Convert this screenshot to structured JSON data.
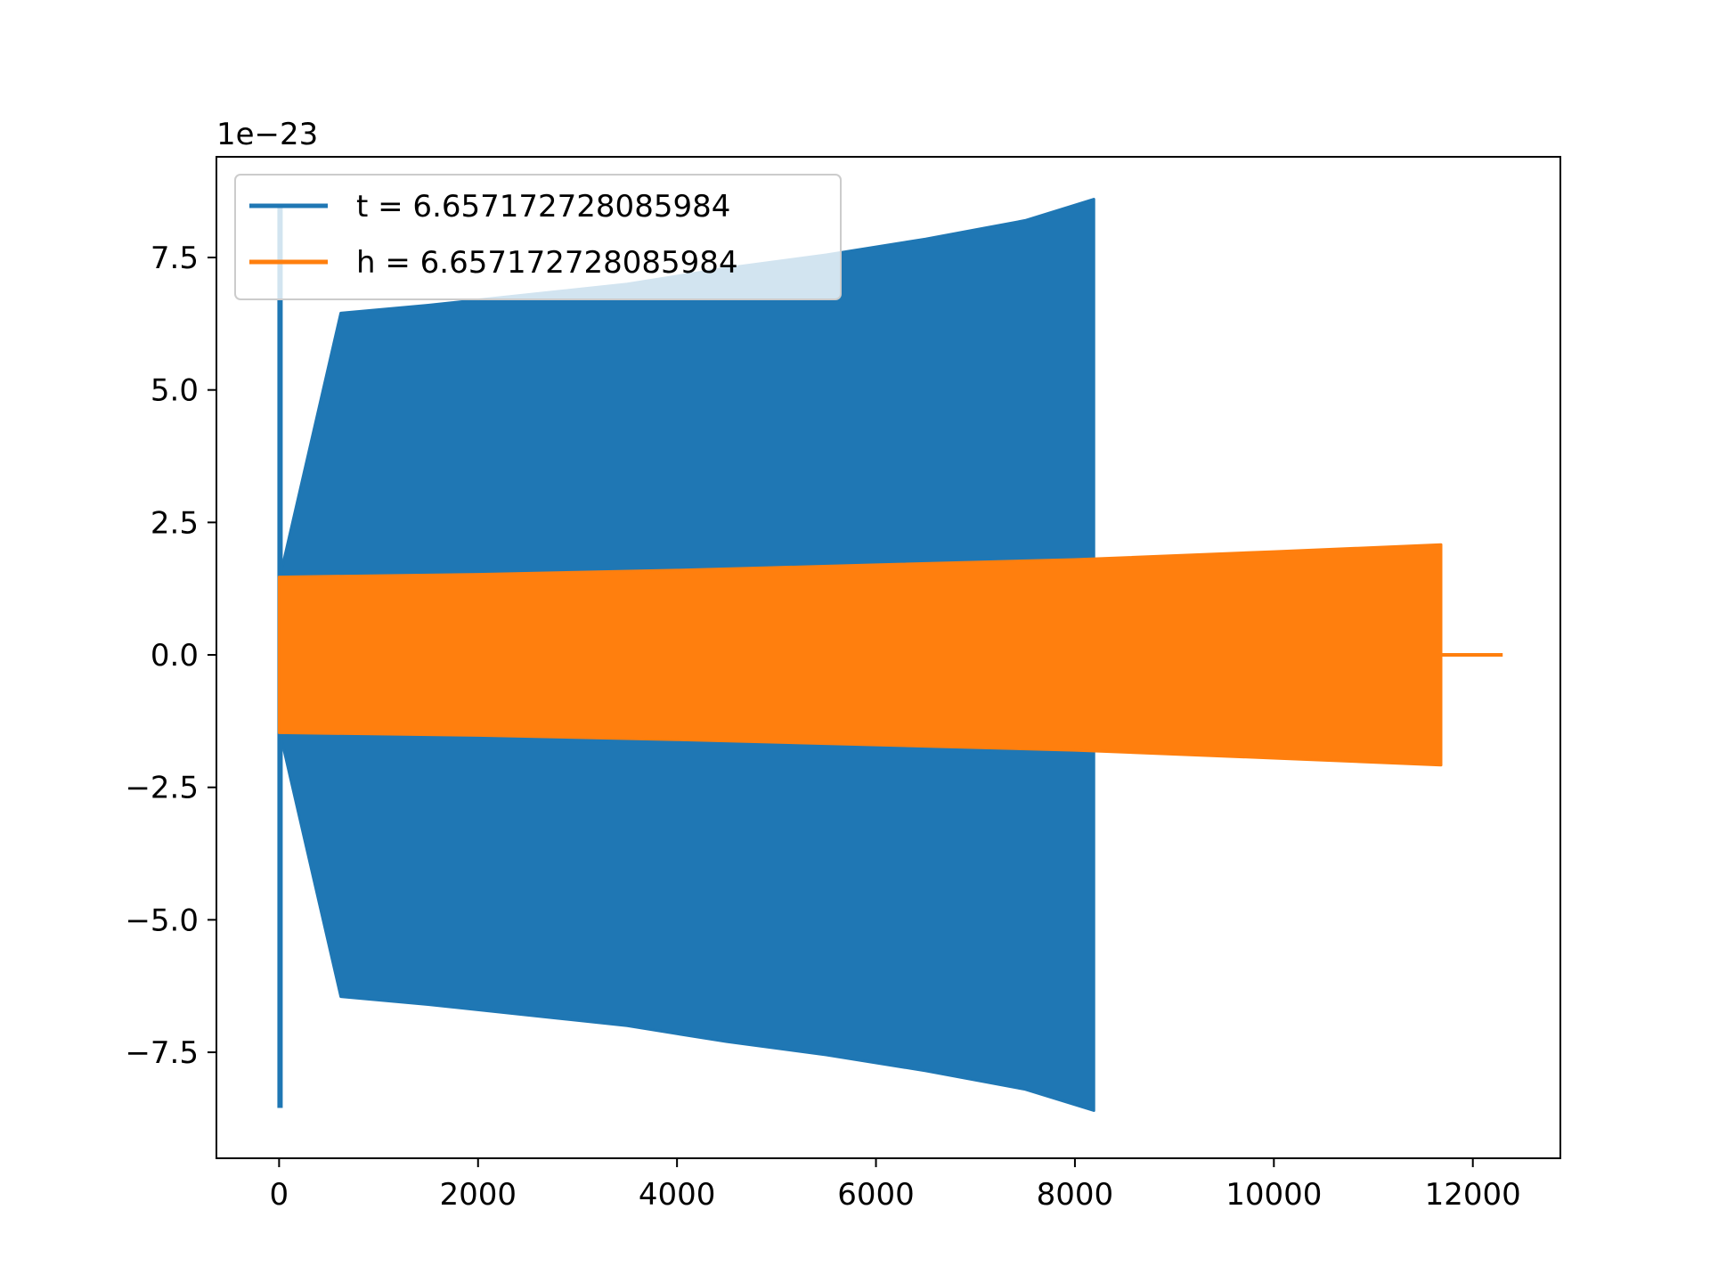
{
  "chart_data": {
    "type": "line",
    "title": "",
    "xlabel": "",
    "ylabel": "",
    "y_offset_text": "1e−23",
    "xlim": [
      -630,
      12880
    ],
    "ylim": [
      -9.5,
      9.4
    ],
    "x_ticks": [
      0,
      2000,
      4000,
      6000,
      8000,
      10000,
      12000
    ],
    "x_tick_labels": [
      "0",
      "2000",
      "4000",
      "6000",
      "8000",
      "10000",
      "12000"
    ],
    "y_ticks": [
      -7.5,
      -5.0,
      -2.5,
      0.0,
      2.5,
      5.0,
      7.5
    ],
    "y_tick_labels": [
      "−7.5",
      "−5.0",
      "−2.5",
      "0.0",
      "2.5",
      "5.0",
      "7.5"
    ],
    "grid": false,
    "legend_position": "upper-left",
    "series": [
      {
        "name": "t = 6.657172728085984",
        "color": "#1f77b4",
        "envelope": {
          "x": [
            0,
            620,
            1500,
            2500,
            3500,
            4500,
            5500,
            6500,
            7500,
            8190
          ],
          "upper": [
            1.4,
            6.45,
            6.6,
            6.8,
            7.0,
            7.3,
            7.55,
            7.85,
            8.2,
            8.6
          ],
          "lower": [
            -1.4,
            -6.45,
            -6.6,
            -6.8,
            -7.0,
            -7.3,
            -7.55,
            -7.85,
            -8.2,
            -8.6
          ]
        },
        "spike": {
          "x": 5,
          "top": 8.5,
          "bottom": -8.55
        }
      },
      {
        "name": "h = 6.657172728085984",
        "color": "#ff7f0e",
        "envelope": {
          "x": [
            0,
            2000,
            4000,
            6000,
            8000,
            10000,
            11680
          ],
          "upper": [
            1.47,
            1.52,
            1.6,
            1.7,
            1.8,
            1.95,
            2.08
          ],
          "lower": [
            -1.47,
            -1.52,
            -1.6,
            -1.7,
            -1.8,
            -1.95,
            -2.08
          ]
        },
        "tail": {
          "x_start": 11680,
          "x_end": 12300,
          "value": 0.0
        }
      }
    ]
  }
}
